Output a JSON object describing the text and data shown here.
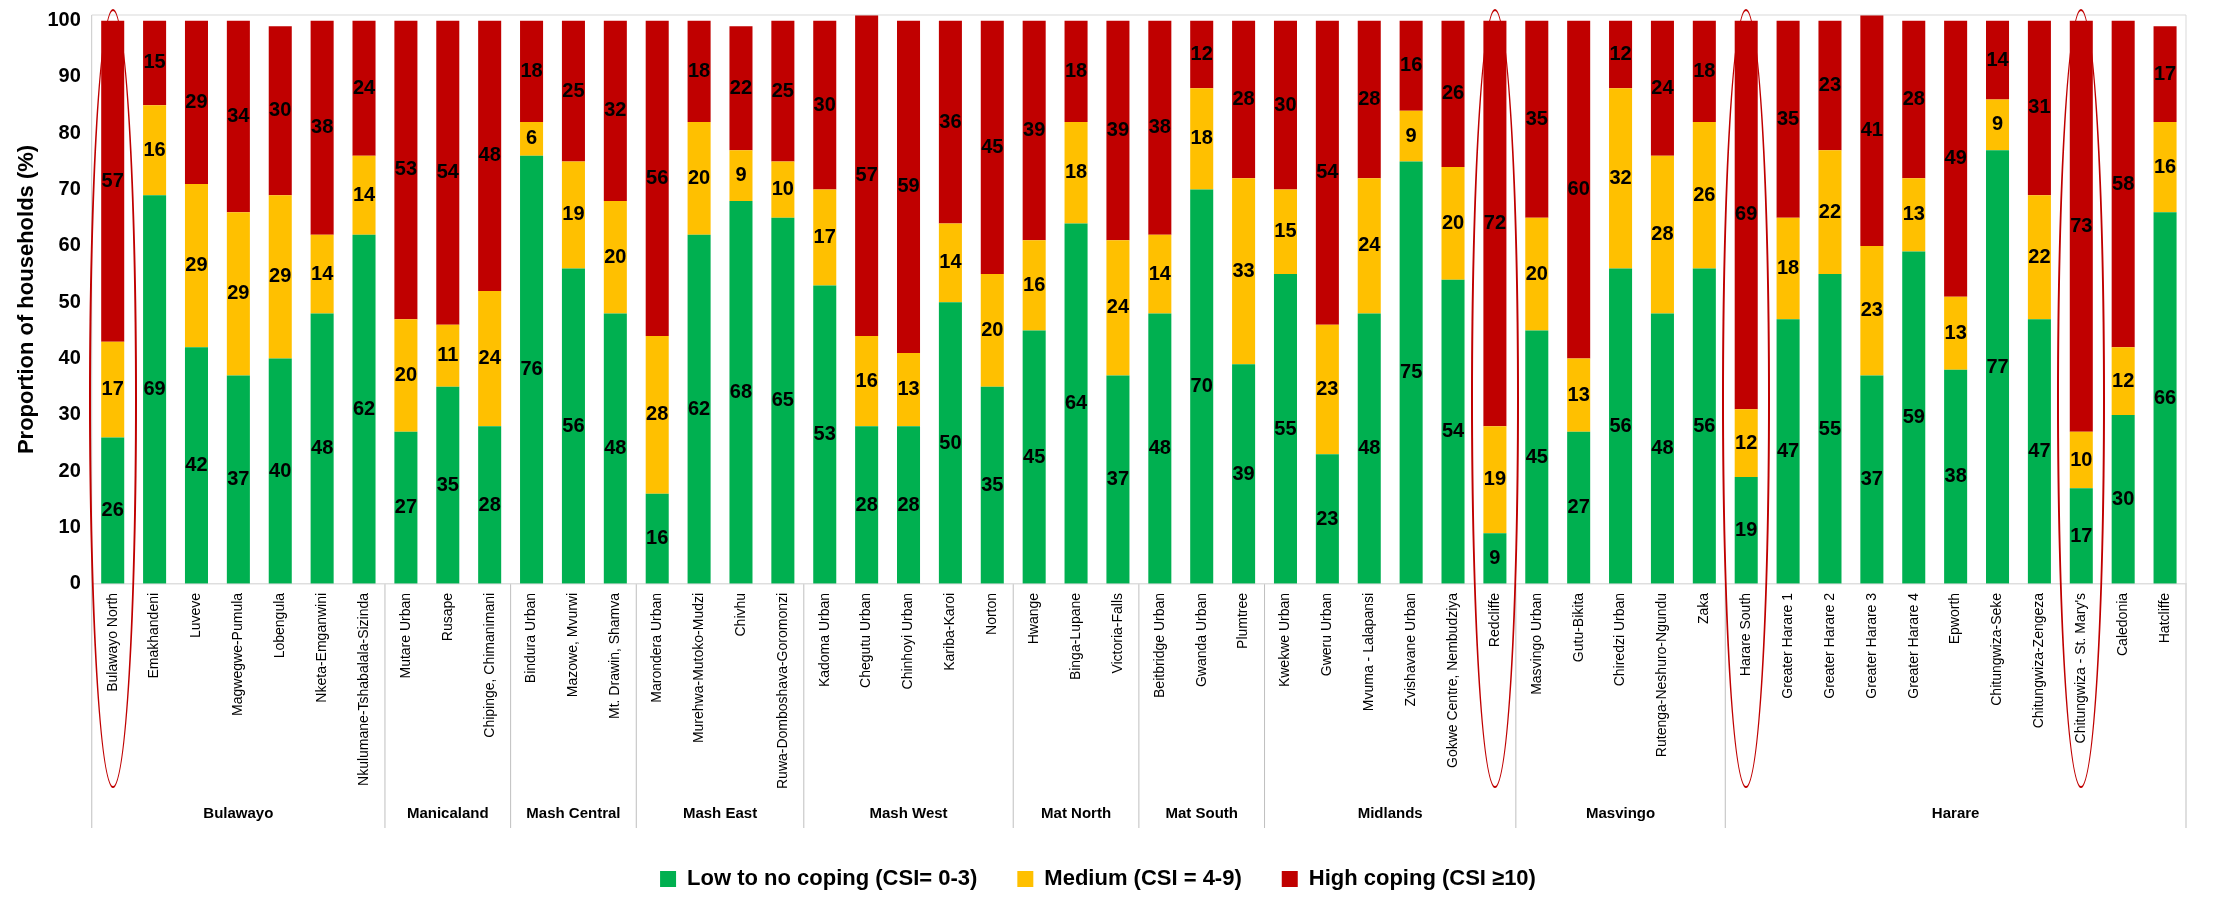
{
  "chart_data": {
    "type": "bar",
    "stacked": true,
    "ylabel": "Proportion of households (%)",
    "categories": [
      "Bulawayo North",
      "Emakhandeni",
      "Luveve",
      "Magwegwe-Pumula",
      "Lobengula",
      "Nketa-Emganwini",
      "Nkulumane-Tshabalala-Sizinda",
      "Mutare Urban",
      "Rusape",
      "Chipinge, Chimanimani",
      "Bindura Urban",
      "Mazowe, Mvurwi",
      "Mt. Drawin, Shamva",
      "Marondera Urban",
      "Murehwa-Mutoko-Mudzi",
      "Chivhu",
      "Ruwa-Domboshava-Goromonzi",
      "Kadoma Urban",
      "Chegutu Urban",
      "Chinhoyi Urban",
      "Kariba-Karoi",
      "Norton",
      "Hwange",
      "Binga-Lupane",
      "Victoria-Falls",
      "Beitbridge Urban",
      "Gwanda Urban",
      "Plumtree",
      "Kwekwe Urban",
      "Gweru Urban",
      "Mvuma - Lalapansi",
      "Zvishavane Urban",
      "Gokwe Centre, Nembudziya",
      "Redcliffe",
      "Masvingo Urban",
      "Gutu-Bikita",
      "Chiredzi Urban",
      "Rutenga-Neshuro-Ngundu",
      "Zaka",
      "Harare South",
      "Greater Harare 1",
      "Greater Harare 2",
      "Greater Harare 3",
      "Greater Harare 4",
      "Epworth",
      "Chitungwiza-Seke",
      "Chitungwiza-Zengeza",
      "Chitungwiza - St. Mary's",
      "Caledonia",
      "Hatcliffe"
    ],
    "series": [
      {
        "name": "Low to no coping (CSI= 0-3)",
        "color": "#00b050",
        "values": [
          26,
          69,
          42,
          37,
          40,
          48,
          62,
          27,
          35,
          28,
          76,
          56,
          48,
          16,
          62,
          68,
          65,
          53,
          28,
          28,
          50,
          35,
          45,
          64,
          37,
          48,
          70,
          39,
          55,
          23,
          48,
          75,
          54,
          9,
          45,
          27,
          56,
          48,
          56,
          19,
          47,
          55,
          37,
          59,
          38,
          77,
          47,
          17,
          30,
          66
        ]
      },
      {
        "name": "Medium (CSI = 4-9)",
        "color": "#ffc000",
        "values": [
          17,
          16,
          29,
          29,
          29,
          14,
          14,
          20,
          11,
          24,
          6,
          19,
          20,
          28,
          20,
          9,
          10,
          17,
          16,
          13,
          14,
          20,
          16,
          18,
          24,
          14,
          18,
          33,
          15,
          23,
          24,
          9,
          20,
          19,
          20,
          13,
          32,
          28,
          26,
          12,
          18,
          22,
          23,
          13,
          13,
          9,
          22,
          10,
          12,
          16
        ]
      },
      {
        "name": "High coping (CSI ≥10)",
        "color": "#c00000",
        "values": [
          57,
          15,
          29,
          34,
          30,
          38,
          24,
          53,
          54,
          48,
          18,
          25,
          32,
          56,
          18,
          22,
          25,
          30,
          57,
          59,
          36,
          45,
          39,
          18,
          39,
          38,
          12,
          28,
          30,
          54,
          28,
          16,
          26,
          72,
          35,
          60,
          12,
          24,
          18,
          69,
          35,
          23,
          41,
          28,
          49,
          14,
          31,
          73,
          58,
          17
        ]
      }
    ],
    "ylim": [
      0,
      101
    ],
    "yticks": [
      0,
      10,
      20,
      30,
      40,
      50,
      60,
      70,
      80,
      90,
      100
    ],
    "grid": false,
    "legend": "bottom",
    "data_labels": true,
    "annotations": [
      "Bulawayo",
      "Manicaland",
      "Mash Central",
      "Mash East",
      "Mash West",
      "Mat North",
      "Mat South",
      "Midlands",
      "Masvingo",
      "Harare"
    ]
  }
}
